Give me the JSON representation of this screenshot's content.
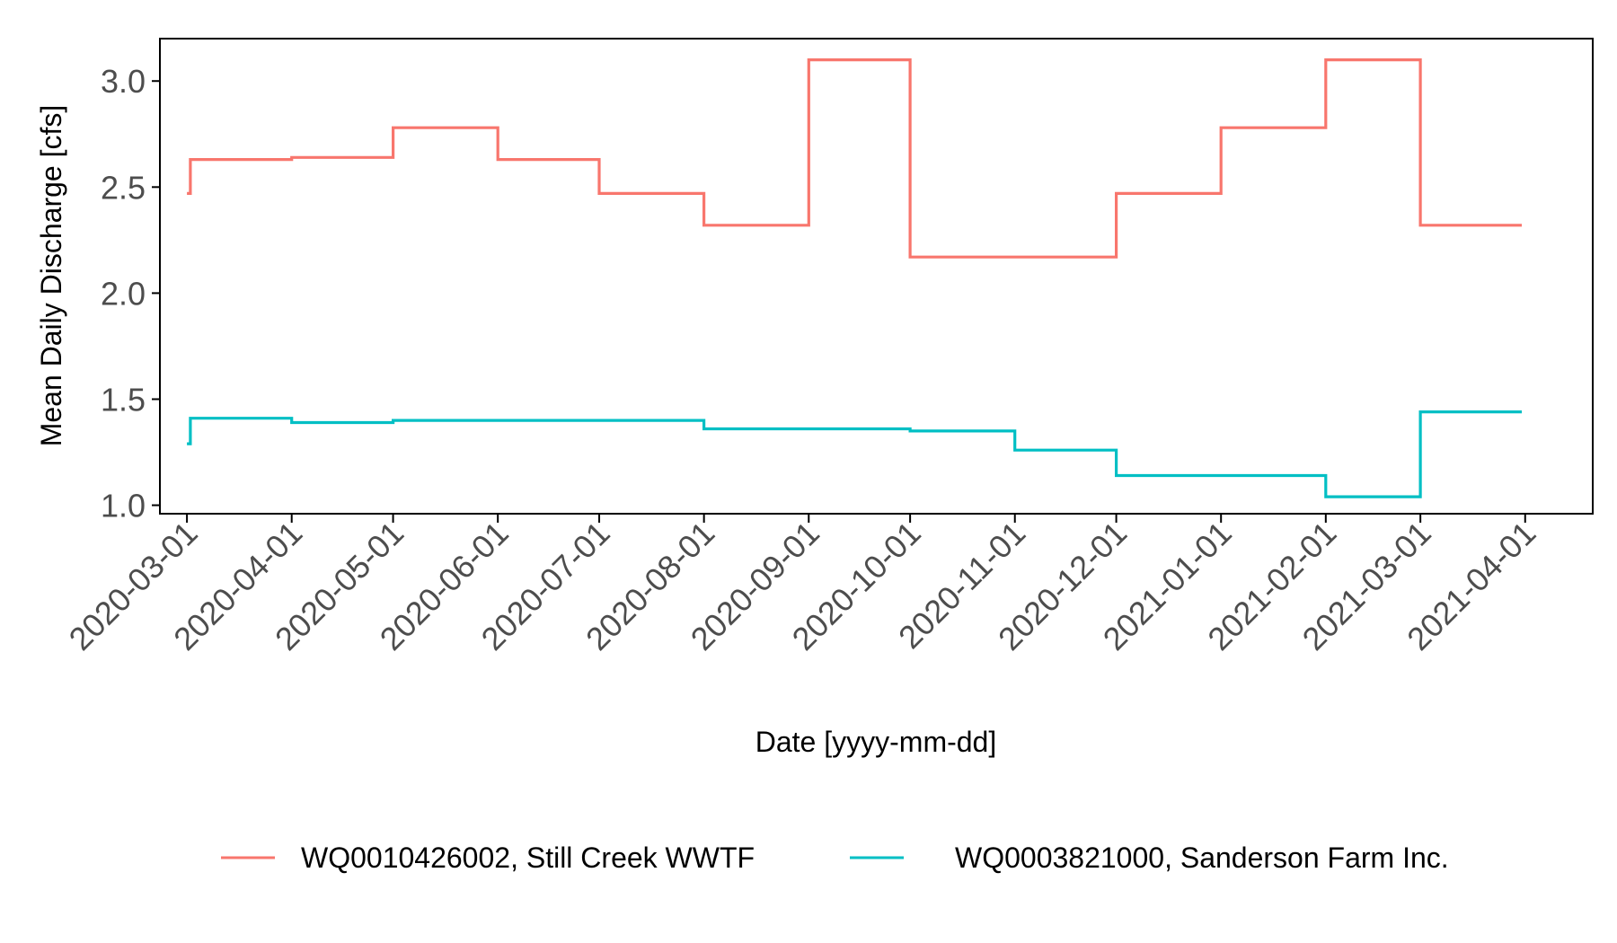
{
  "chart_data": {
    "type": "line",
    "title": "",
    "xlabel": "Date [yyyy-mm-dd]",
    "ylabel": "Mean Daily Discharge [cfs]",
    "ylim": [
      0.96,
      3.2
    ],
    "yticks": [
      "1.0",
      "1.5",
      "2.0",
      "2.5",
      "3.0"
    ],
    "xlim": [
      "2020-02-22",
      "2021-04-21"
    ],
    "xticks": [
      "2020-03-01",
      "2020-04-01",
      "2020-05-01",
      "2020-06-01",
      "2020-07-01",
      "2020-08-01",
      "2020-09-01",
      "2020-10-01",
      "2020-11-01",
      "2020-12-01",
      "2021-01-01",
      "2021-02-01",
      "2021-03-01",
      "2021-04-01"
    ],
    "step": "post",
    "grid": false,
    "legend_position": "bottom",
    "series": [
      {
        "name": "WQ0010426002, Still Creek WWTF",
        "color": "#F8766D",
        "x": [
          "2020-03-01",
          "2020-03-02",
          "2020-04-01",
          "2020-05-01",
          "2020-06-01",
          "2020-07-01",
          "2020-08-01",
          "2020-09-01",
          "2020-10-01",
          "2020-11-01",
          "2020-12-01",
          "2021-01-01",
          "2021-02-01",
          "2021-03-01",
          "2021-03-31"
        ],
        "values": [
          2.47,
          2.63,
          2.64,
          2.78,
          2.63,
          2.47,
          2.32,
          3.1,
          2.17,
          2.17,
          2.47,
          2.78,
          3.1,
          2.32,
          2.32
        ]
      },
      {
        "name": "WQ0003821000, Sanderson Farm Inc.",
        "color": "#00BFC4",
        "x": [
          "2020-03-01",
          "2020-03-02",
          "2020-04-01",
          "2020-05-01",
          "2020-06-01",
          "2020-07-01",
          "2020-08-01",
          "2020-09-01",
          "2020-10-01",
          "2020-11-01",
          "2020-12-01",
          "2021-01-01",
          "2021-02-01",
          "2021-03-01",
          "2021-03-31"
        ],
        "values": [
          1.29,
          1.41,
          1.39,
          1.4,
          1.4,
          1.4,
          1.36,
          1.36,
          1.35,
          1.26,
          1.14,
          1.14,
          1.04,
          1.44,
          1.44
        ]
      }
    ]
  }
}
